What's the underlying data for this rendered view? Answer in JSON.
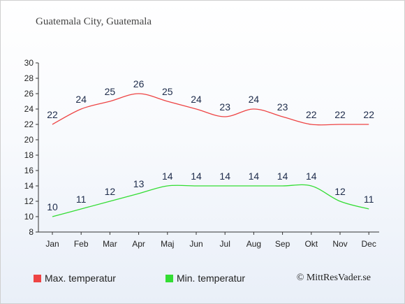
{
  "title": "Guatemala City, Guatemala",
  "credit": "© MittResVader.se",
  "colors": {
    "max": "#ee4444",
    "min": "#33dd33",
    "axis": "#333333"
  },
  "chart_data": {
    "type": "line",
    "categories": [
      "Jan",
      "Feb",
      "Mar",
      "Apr",
      "Maj",
      "Jun",
      "Jul",
      "Aug",
      "Sep",
      "Okt",
      "Nov",
      "Dec"
    ],
    "ylim": [
      8,
      30
    ],
    "yticks": [
      8,
      10,
      12,
      14,
      16,
      18,
      20,
      22,
      24,
      26,
      28,
      30
    ],
    "series": [
      {
        "name": "Max. temperatur",
        "values": [
          22,
          24,
          25,
          26,
          25,
          24,
          23,
          24,
          23,
          22,
          22,
          22
        ]
      },
      {
        "name": "Min. temperatur",
        "values": [
          10,
          11,
          12,
          13,
          14,
          14,
          14,
          14,
          14,
          14,
          12,
          11
        ]
      }
    ],
    "legend": "bottom-left",
    "grid": false
  }
}
